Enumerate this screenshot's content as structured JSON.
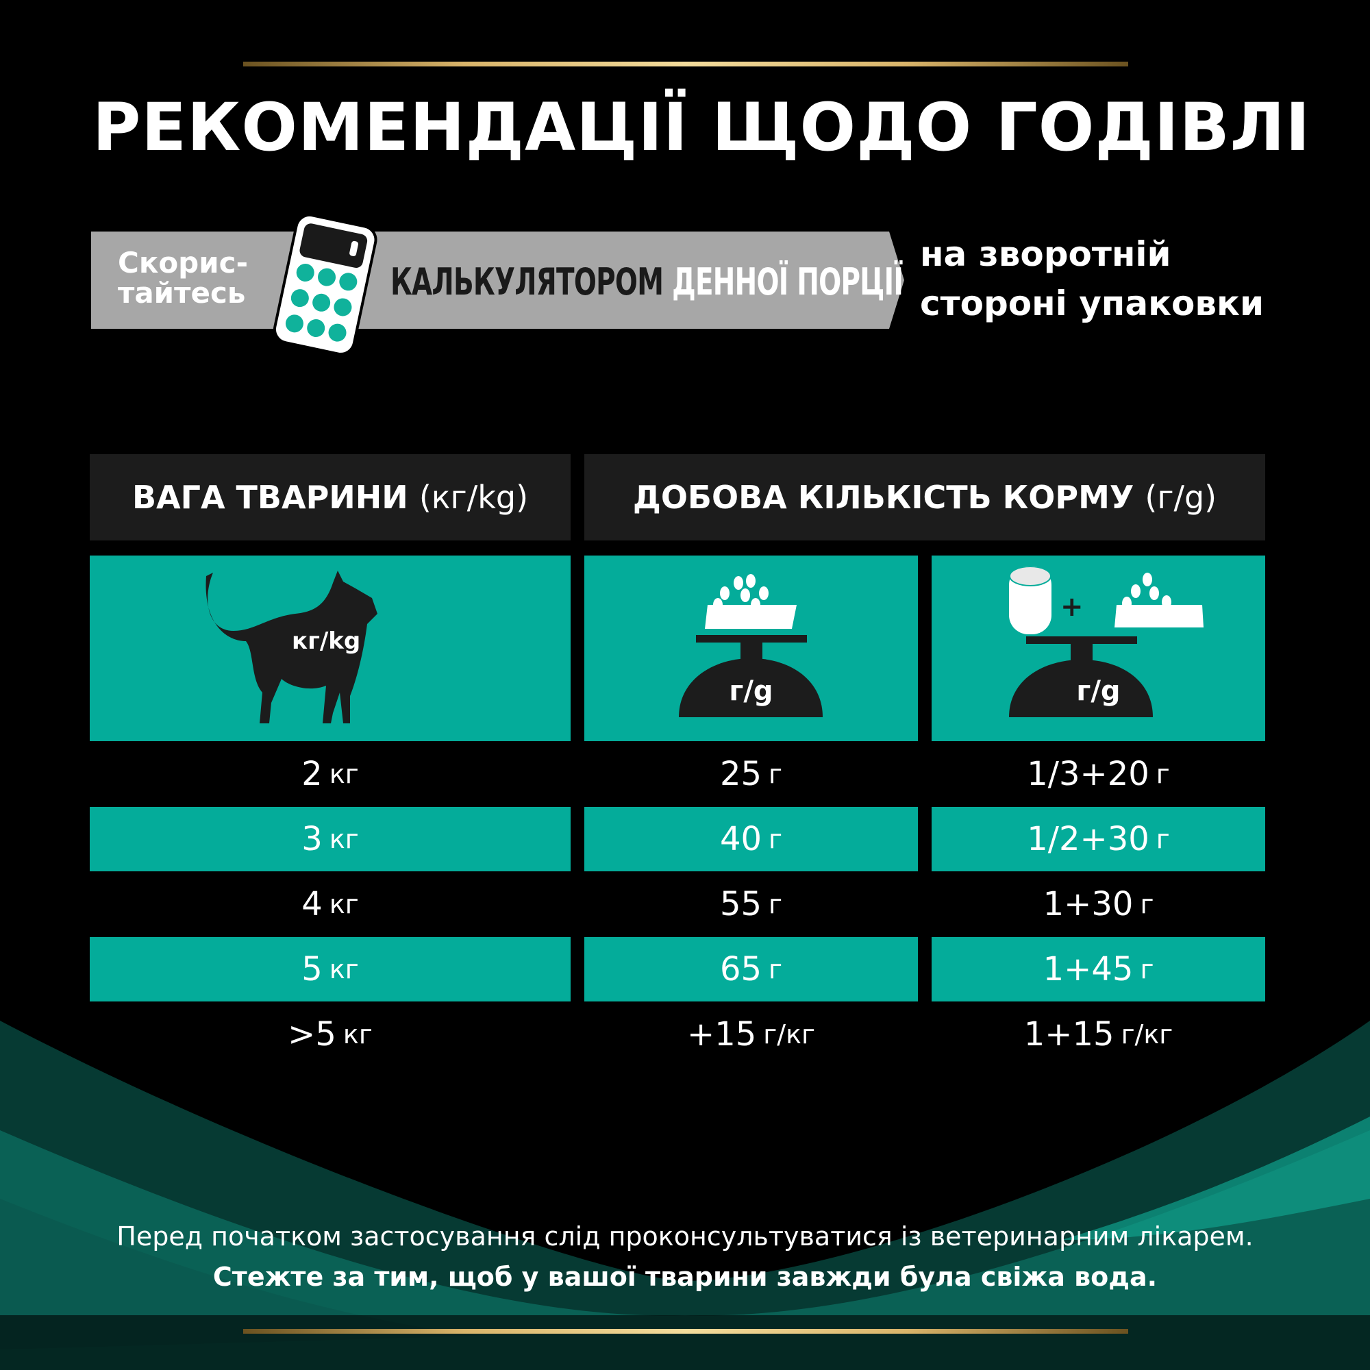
{
  "title": "РЕКОМЕНДАЦІЇ ЩОДО ГОДІВЛІ",
  "banner": {
    "use": [
      "Скорис-",
      "тайтесь"
    ],
    "calc_dark": "КАЛЬКУЛЯТОРОМ",
    "calc_light": "ДЕННОЇ ПОРЦІЇ",
    "back": [
      "на зворотній",
      "стороні упаковки"
    ]
  },
  "table": {
    "headers": [
      {
        "label": "ВАГА ТВАРИНИ",
        "unit": "(кг/kg)"
      },
      {
        "label": "ДОБОВА КІЛЬКІСТЬ КОРМУ",
        "unit": "(г/g)"
      }
    ],
    "icons": [
      {
        "icon": "cat-icon",
        "label": "кг/kg"
      },
      {
        "icon": "dry-food-scale-icon",
        "label": "г/g"
      },
      {
        "icon": "wet-plus-dry-scale-icon",
        "label": "г/g",
        "plus": "+"
      }
    ],
    "rows": [
      [
        {
          "v": "2",
          "u": "кг"
        },
        {
          "v": "25",
          "u": "г"
        },
        {
          "v": "1/3+20",
          "u": "г"
        }
      ],
      [
        {
          "v": "3",
          "u": "кг"
        },
        {
          "v": "40",
          "u": "г"
        },
        {
          "v": "1/2+30",
          "u": "г"
        }
      ],
      [
        {
          "v": "4",
          "u": "кг"
        },
        {
          "v": "55",
          "u": "г"
        },
        {
          "v": "1+30",
          "u": "г"
        }
      ],
      [
        {
          "v": "5",
          "u": "кг"
        },
        {
          "v": "65",
          "u": "г"
        },
        {
          "v": "1+45",
          "u": "г"
        }
      ],
      [
        {
          "v": ">5",
          "u": "кг"
        },
        {
          "v": "+15",
          "u": "г/кг"
        },
        {
          "v": "1+15",
          "u": "г/кг"
        }
      ]
    ]
  },
  "footer": {
    "line1": "Перед початком застосування слід проконсультуватися із ветеринарним лікарем.",
    "line2": "Стежте за тим, щоб у вашої тварини завжди була свіжа вода."
  },
  "colors": {
    "teal": "#04ac9a",
    "gray": "#a7a7a7",
    "header": "#1c1c1c",
    "gold": "#d9b46a"
  }
}
